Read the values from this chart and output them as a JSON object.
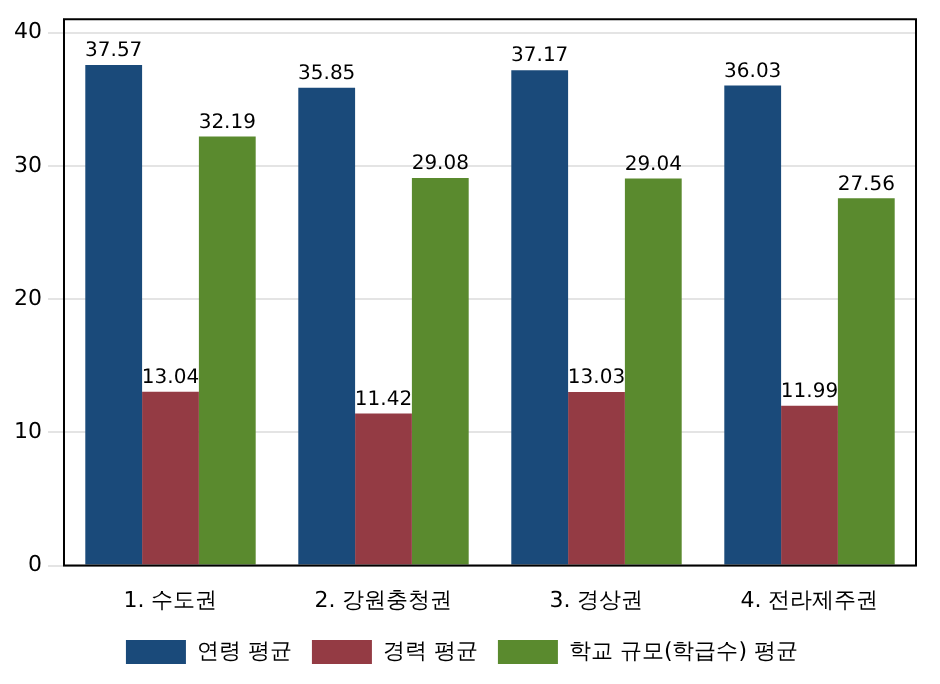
{
  "chart_data": {
    "type": "bar",
    "categories": [
      "1. 수도권",
      "2. 강원충청권",
      "3. 경상권",
      "4. 전라제주권"
    ],
    "series": [
      {
        "name": "연령 평균",
        "color": "#1a4a7a",
        "values": [
          37.57,
          35.85,
          37.17,
          36.03
        ]
      },
      {
        "name": "경력 평균",
        "color": "#943b44",
        "values": [
          13.04,
          11.42,
          13.03,
          11.99
        ]
      },
      {
        "name": "학교 규모(학급수) 평균",
        "color": "#5a8a2e",
        "values": [
          32.19,
          29.08,
          29.04,
          27.56
        ]
      }
    ],
    "ylim": [
      0,
      41
    ],
    "yticks": [
      0,
      10,
      20,
      30,
      40
    ],
    "grid": "y",
    "legend": "bottom",
    "data_labels": true
  }
}
